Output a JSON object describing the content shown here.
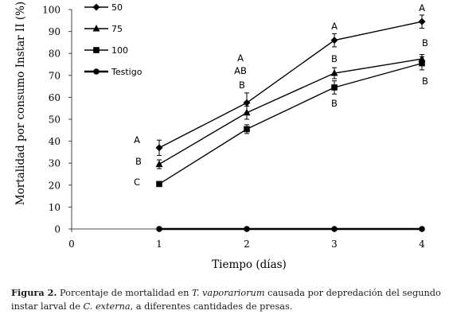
{
  "chart_data": {
    "type": "line",
    "xlabel": "Tiempo (días)",
    "ylabel": "Mortalidad por consumo Instar II (%)",
    "x_ticks": [
      "0",
      "1",
      "2",
      "3",
      "4"
    ],
    "y_ticks": [
      "0",
      "10",
      "20",
      "30",
      "40",
      "50",
      "60",
      "70",
      "80",
      "90",
      "100"
    ],
    "xlim": [
      0,
      4
    ],
    "ylim": [
      0,
      100
    ],
    "grid": false,
    "legend_position": "top-left",
    "x": [
      1,
      2,
      3,
      4
    ],
    "series": [
      {
        "name": "50",
        "marker": "diamond",
        "values": [
          37,
          57.5,
          86,
          94.5
        ],
        "errors": [
          3.5,
          4.5,
          3,
          3
        ]
      },
      {
        "name": "75",
        "marker": "triangle",
        "values": [
          29.5,
          53,
          71,
          77.5
        ],
        "errors": [
          2,
          3,
          2.5,
          2
        ]
      },
      {
        "name": "100",
        "marker": "square",
        "values": [
          20.5,
          45.5,
          64.5,
          75.5
        ],
        "errors": [
          1,
          2,
          3,
          3
        ]
      },
      {
        "name": "Testigo",
        "marker": "circle",
        "values": [
          0,
          0,
          0,
          0
        ],
        "errors": [
          0,
          0,
          0,
          0
        ]
      }
    ],
    "annotations": [
      {
        "x": 1,
        "labels": [
          "A",
          "B",
          "C"
        ]
      },
      {
        "x": 2,
        "labels": [
          "A",
          "AB",
          "B"
        ]
      },
      {
        "x": 3,
        "labels": [
          "A",
          "B",
          "B"
        ]
      },
      {
        "x": 4,
        "labels": [
          "A",
          "B",
          "B"
        ]
      }
    ]
  },
  "caption": {
    "figure_label": "Figura 2.",
    "text_1": " Porcentaje de mortalidad en ",
    "species": "T. vaporariorum",
    "text_2": " causada por depredación del segundo instar larval de ",
    "predator": "C. externa",
    "text_3": ", a diferentes cantidades de presas."
  }
}
